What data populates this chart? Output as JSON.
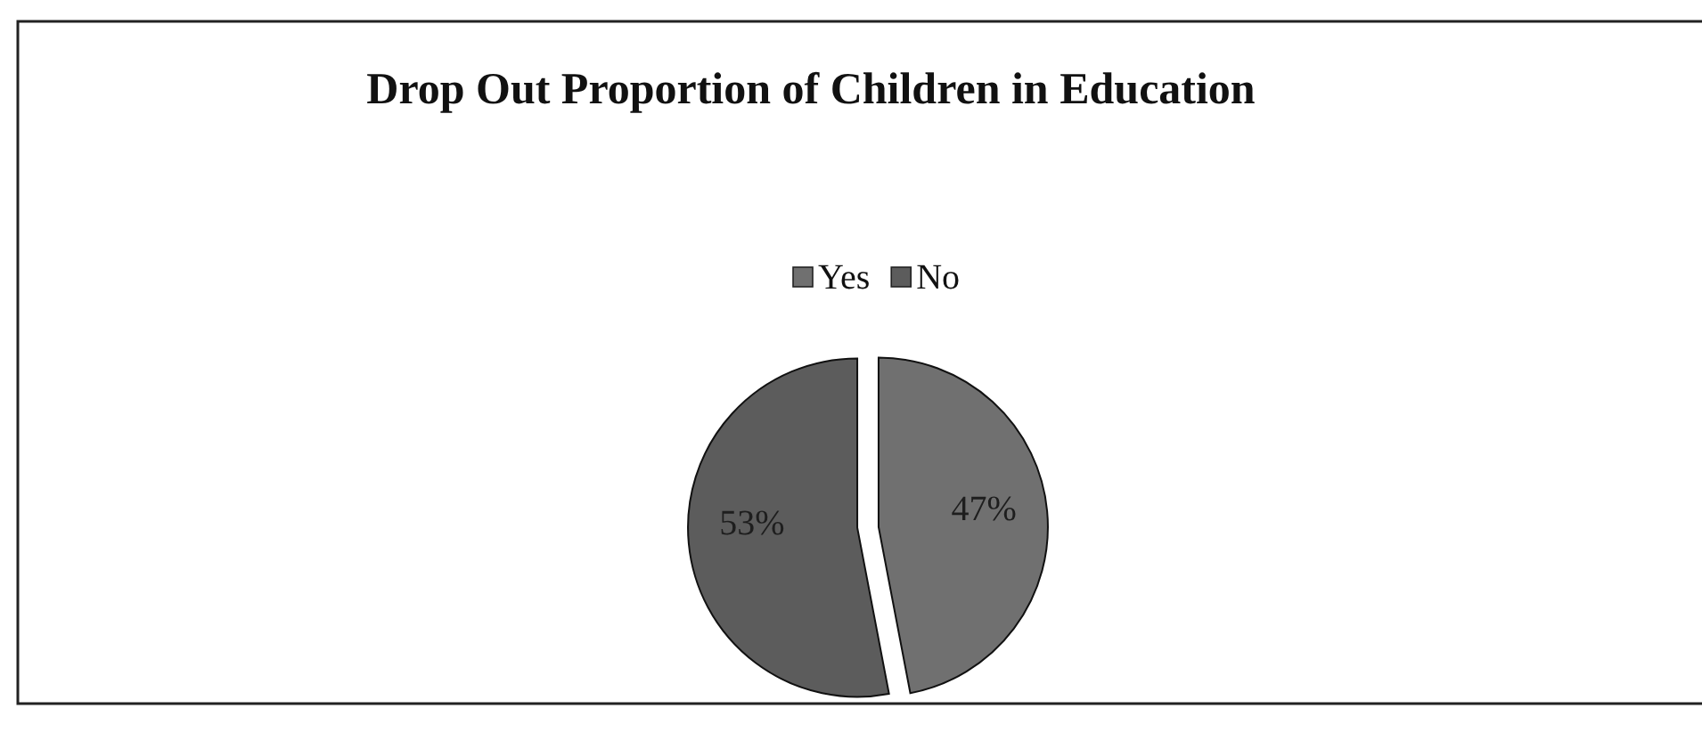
{
  "chart_data": {
    "type": "pie",
    "title": "Drop Out Proportion of Children in Education",
    "categories": [
      "Yes",
      "No"
    ],
    "values": [
      47,
      53
    ],
    "colors": [
      "#707070",
      "#5c5c5c"
    ],
    "value_labels": [
      "47%",
      "53%"
    ],
    "legend": "top"
  }
}
